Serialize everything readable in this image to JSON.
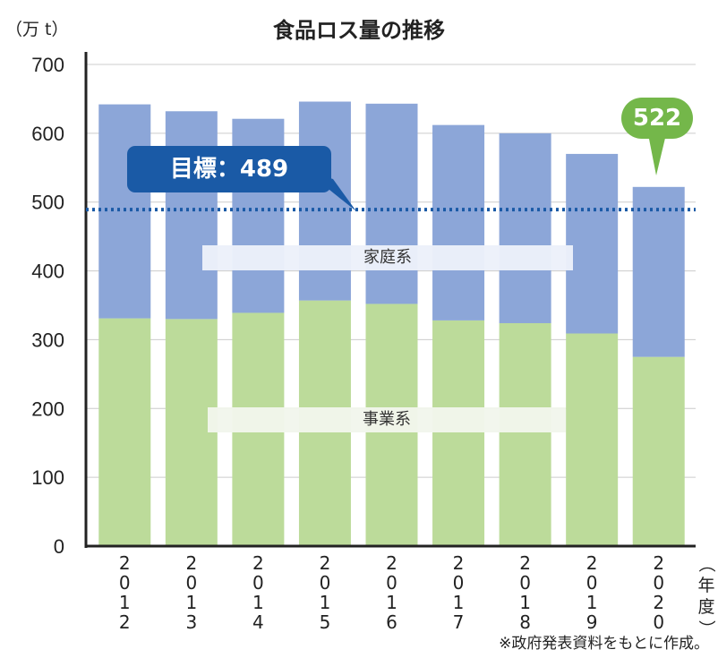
{
  "title": "食品ロス量の推移",
  "unit_label": "（万 t）",
  "x_unit_label": "（年度）",
  "source_note": "※政府発表資料をもとに作成。",
  "target_label": "目標：489",
  "highlight_label": "522",
  "series_labels": {
    "household": "家庭系",
    "business": "事業系"
  },
  "colors": {
    "household": "#8ca6d8",
    "business": "#bcdb9a",
    "target": "#1a5aa6",
    "highlight": "#74b74a",
    "axis": "#222222",
    "grid": "#cccccc"
  },
  "chart_data": {
    "type": "bar",
    "stacked": true,
    "categories": [
      "2012",
      "2013",
      "2014",
      "2015",
      "2016",
      "2017",
      "2018",
      "2019",
      "2020"
    ],
    "series": [
      {
        "name": "事業系",
        "values": [
          331,
          330,
          339,
          357,
          352,
          328,
          324,
          309,
          275
        ]
      },
      {
        "name": "家庭系",
        "values": [
          311,
          302,
          282,
          289,
          291,
          284,
          276,
          261,
          247
        ]
      }
    ],
    "totals": [
      642,
      632,
      621,
      646,
      643,
      612,
      600,
      570,
      522
    ],
    "target_value": 489,
    "ylim": [
      0,
      700
    ],
    "yticks": [
      0,
      100,
      200,
      300,
      400,
      500,
      600,
      700
    ],
    "grid": true
  }
}
